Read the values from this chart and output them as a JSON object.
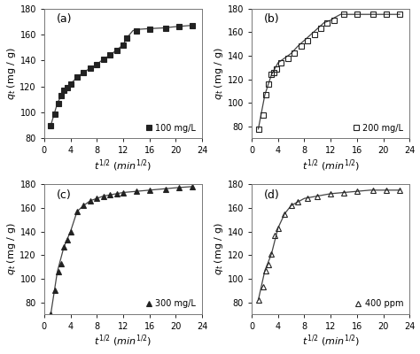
{
  "subplots": [
    {
      "label": "(a)",
      "legend": "100 mg/L",
      "marker": "s",
      "fillstyle": "full",
      "x_data": [
        1.0,
        1.7,
        2.2,
        2.6,
        3.0,
        3.5,
        4.0,
        5.0,
        6.0,
        7.0,
        8.0,
        9.0,
        10.0,
        11.0,
        12.0,
        12.5,
        14.0,
        16.0,
        18.5,
        20.5,
        22.5
      ],
      "y_data": [
        90,
        99,
        107,
        113,
        117,
        119,
        122,
        127,
        131,
        134,
        137,
        141,
        144,
        148,
        152,
        157,
        163,
        164,
        165,
        166,
        167
      ],
      "curve_x": [
        1.0,
        2.0,
        3.0,
        4.0,
        5.0,
        6.0,
        7.0,
        8.0,
        9.0,
        10.0,
        11.0,
        12.0,
        12.5,
        13.5,
        14.5,
        16.0,
        18.0,
        20.0,
        22.5
      ],
      "curve_y": [
        90,
        107,
        117,
        122,
        127,
        131,
        134,
        137,
        141,
        144,
        148,
        152,
        157,
        163,
        164,
        164.5,
        165,
        166,
        167
      ],
      "ylim": [
        80,
        180
      ],
      "yticks": [
        80,
        100,
        120,
        140,
        160,
        180
      ],
      "xlim": [
        0,
        24
      ],
      "xticks": [
        0,
        4,
        8,
        12,
        16,
        20,
        24
      ]
    },
    {
      "label": "(b)",
      "legend": "200 mg/L",
      "marker": "s",
      "fillstyle": "none",
      "x_data": [
        1.0,
        1.7,
        2.2,
        2.6,
        3.0,
        3.4,
        3.8,
        4.5,
        5.5,
        6.5,
        7.5,
        8.5,
        9.5,
        10.5,
        11.5,
        12.5,
        14.0,
        16.0,
        18.5,
        20.5,
        22.5
      ],
      "y_data": [
        78,
        90,
        107,
        116,
        124,
        126,
        129,
        134,
        138,
        142,
        148,
        153,
        158,
        163,
        168,
        170,
        175,
        175,
        175,
        175,
        175
      ],
      "curve_x": [
        1.0,
        2.0,
        3.0,
        4.0,
        5.0,
        6.0,
        7.0,
        8.0,
        9.0,
        10.0,
        11.0,
        12.0,
        12.5,
        13.5,
        14.5,
        16.0,
        18.0,
        20.0,
        22.5
      ],
      "curve_y": [
        78,
        107,
        124,
        134,
        138,
        142,
        148,
        153,
        158,
        163,
        168,
        170,
        172,
        175,
        175,
        175,
        175,
        175,
        175
      ],
      "ylim": [
        70,
        180
      ],
      "yticks": [
        80,
        100,
        120,
        140,
        160,
        180
      ],
      "xlim": [
        0,
        24
      ],
      "xticks": [
        0,
        4,
        8,
        12,
        16,
        20,
        24
      ]
    },
    {
      "label": "(c)",
      "legend": "300 mg/L",
      "marker": "^",
      "fillstyle": "full",
      "x_data": [
        1.0,
        1.7,
        2.2,
        2.6,
        3.0,
        3.5,
        4.0,
        5.0,
        6.0,
        7.0,
        8.0,
        9.0,
        10.0,
        11.0,
        12.0,
        14.0,
        16.0,
        18.5,
        20.5,
        22.5
      ],
      "y_data": [
        70,
        90,
        106,
        113,
        127,
        133,
        140,
        157,
        162,
        166,
        168,
        170,
        171,
        172,
        173,
        174,
        175,
        176,
        177,
        178
      ],
      "curve_x": [
        1.0,
        2.0,
        3.0,
        4.0,
        5.0,
        6.0,
        7.0,
        8.0,
        9.0,
        10.0,
        11.0,
        12.0,
        14.0,
        16.0,
        18.0,
        20.0,
        22.5
      ],
      "curve_y": [
        70,
        106,
        127,
        140,
        157,
        162,
        166,
        168,
        170,
        171,
        172,
        173,
        174,
        175,
        176,
        177,
        178
      ],
      "ylim": [
        70,
        180
      ],
      "yticks": [
        80,
        100,
        120,
        140,
        160,
        180
      ],
      "xlim": [
        0,
        24
      ],
      "xticks": [
        0,
        4,
        8,
        12,
        16,
        20,
        24
      ]
    },
    {
      "label": "(d)",
      "legend": "400 ppm",
      "marker": "^",
      "fillstyle": "none",
      "x_data": [
        1.0,
        1.7,
        2.2,
        2.6,
        3.0,
        3.5,
        4.0,
        5.0,
        6.0,
        7.0,
        8.5,
        10.0,
        12.0,
        14.0,
        16.0,
        18.5,
        20.5,
        22.5
      ],
      "y_data": [
        82,
        93,
        107,
        112,
        121,
        137,
        143,
        155,
        162,
        165,
        168,
        170,
        172,
        173,
        174,
        175,
        175,
        175
      ],
      "curve_x": [
        1.0,
        2.0,
        3.0,
        4.0,
        5.0,
        6.0,
        7.0,
        8.0,
        9.0,
        10.0,
        12.0,
        14.0,
        16.0,
        18.0,
        20.0,
        22.5
      ],
      "curve_y": [
        82,
        107,
        121,
        143,
        155,
        162,
        165,
        168,
        169,
        170,
        172,
        173,
        174,
        175,
        175,
        175
      ],
      "ylim": [
        70,
        180
      ],
      "yticks": [
        80,
        100,
        120,
        140,
        160,
        180
      ],
      "xlim": [
        0,
        24
      ],
      "xticks": [
        0,
        4,
        8,
        12,
        16,
        20,
        24
      ]
    }
  ],
  "xlabel": "$t^{1/2}$ $(min^{1/2})$",
  "ylabel": "$q_t$ (mg / g)",
  "line_color": "#444444",
  "marker_color": "#222222",
  "marker_size": 4,
  "line_width": 0.9,
  "font_size": 8,
  "label_font_size": 9,
  "tick_font_size": 7
}
